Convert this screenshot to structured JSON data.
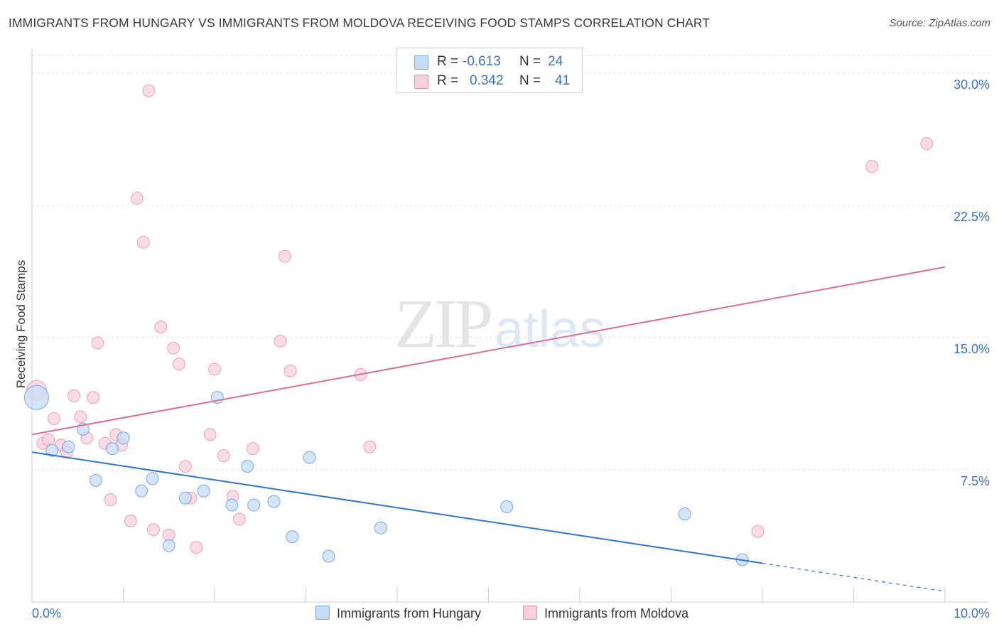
{
  "title": "IMMIGRANTS FROM HUNGARY VS IMMIGRANTS FROM MOLDOVA RECEIVING FOOD STAMPS CORRELATION CHART",
  "source": "Source: ZipAtlas.com",
  "watermark": {
    "zip": "ZIP",
    "atlas": "atlas"
  },
  "legend": {
    "rows": [
      {
        "r_label": "R =",
        "r_value": "-0.613",
        "n_label": "N =",
        "n_value": "24",
        "color": "#a8c8f0",
        "border": "#7aa8e0"
      },
      {
        "r_label": "R =",
        "r_value": "0.342",
        "n_label": "N =",
        "n_value": "41",
        "color": "#f8c0d0",
        "border": "#e890aa"
      }
    ]
  },
  "bottom_legend": {
    "hungary": "Immigrants from Hungary",
    "moldova": "Immigrants from Moldova"
  },
  "chart_data": {
    "type": "scatter",
    "ylabel": "Receiving Food Stamps",
    "xlim": [
      0,
      10
    ],
    "ylim": [
      0,
      31
    ],
    "x_tick_labels": [
      "0.0%",
      "10.0%"
    ],
    "y_ticks": [
      7.5,
      15.0,
      22.5,
      30.0
    ],
    "y_tick_labels": [
      "7.5%",
      "15.0%",
      "22.5%",
      "30.0%"
    ],
    "grid": true,
    "colors": {
      "hungary": "#5b95e0",
      "hungary_fill": "#c7dcf5",
      "moldova": "#e87ea0",
      "moldova_fill": "#fad0dd",
      "hungary_line": "#2f74d0",
      "moldova_line": "#e06c96"
    },
    "series": [
      {
        "name": "Immigrants from Hungary",
        "points": [
          {
            "x": 0.05,
            "y": 11.6,
            "size": "large"
          },
          {
            "x": 0.22,
            "y": 8.6
          },
          {
            "x": 0.4,
            "y": 8.8
          },
          {
            "x": 0.56,
            "y": 9.8
          },
          {
            "x": 0.7,
            "y": 6.9
          },
          {
            "x": 0.88,
            "y": 8.7
          },
          {
            "x": 1.0,
            "y": 9.3
          },
          {
            "x": 1.2,
            "y": 6.3
          },
          {
            "x": 1.32,
            "y": 7.0
          },
          {
            "x": 1.5,
            "y": 3.2
          },
          {
            "x": 1.68,
            "y": 5.9
          },
          {
            "x": 1.88,
            "y": 6.3
          },
          {
            "x": 2.03,
            "y": 11.6
          },
          {
            "x": 2.19,
            "y": 5.5
          },
          {
            "x": 2.36,
            "y": 7.7
          },
          {
            "x": 2.43,
            "y": 5.5
          },
          {
            "x": 2.65,
            "y": 5.7
          },
          {
            "x": 2.85,
            "y": 3.7
          },
          {
            "x": 3.04,
            "y": 8.2
          },
          {
            "x": 3.25,
            "y": 2.6
          },
          {
            "x": 3.82,
            "y": 4.2
          },
          {
            "x": 5.2,
            "y": 5.4
          },
          {
            "x": 7.15,
            "y": 5.0
          },
          {
            "x": 7.78,
            "y": 2.4
          }
        ],
        "trend": {
          "x0": 0,
          "y0": 8.5,
          "x1": 8.0,
          "y1": 2.2,
          "dash_to_x": 10.0,
          "dash_to_y": 0.6
        }
      },
      {
        "name": "Immigrants from Moldova",
        "points": [
          {
            "x": 0.05,
            "y": 12.0,
            "size": "large"
          },
          {
            "x": 0.12,
            "y": 9.0
          },
          {
            "x": 0.18,
            "y": 9.2
          },
          {
            "x": 0.24,
            "y": 10.4
          },
          {
            "x": 0.32,
            "y": 8.9
          },
          {
            "x": 0.38,
            "y": 8.5
          },
          {
            "x": 0.46,
            "y": 11.7
          },
          {
            "x": 0.53,
            "y": 10.5
          },
          {
            "x": 0.6,
            "y": 9.3
          },
          {
            "x": 0.67,
            "y": 11.6
          },
          {
            "x": 0.72,
            "y": 14.7
          },
          {
            "x": 0.8,
            "y": 9.0
          },
          {
            "x": 0.86,
            "y": 5.8
          },
          {
            "x": 0.92,
            "y": 9.5
          },
          {
            "x": 0.98,
            "y": 8.9
          },
          {
            "x": 1.08,
            "y": 4.6
          },
          {
            "x": 1.15,
            "y": 22.9
          },
          {
            "x": 1.22,
            "y": 20.4
          },
          {
            "x": 1.28,
            "y": 29.0
          },
          {
            "x": 1.33,
            "y": 4.1
          },
          {
            "x": 1.41,
            "y": 15.6
          },
          {
            "x": 1.5,
            "y": 3.8
          },
          {
            "x": 1.55,
            "y": 14.4
          },
          {
            "x": 1.61,
            "y": 13.5
          },
          {
            "x": 1.68,
            "y": 7.7
          },
          {
            "x": 1.74,
            "y": 5.9
          },
          {
            "x": 1.8,
            "y": 3.1
          },
          {
            "x": 1.95,
            "y": 9.5
          },
          {
            "x": 2.0,
            "y": 13.2
          },
          {
            "x": 2.1,
            "y": 8.3
          },
          {
            "x": 2.2,
            "y": 6.0
          },
          {
            "x": 2.27,
            "y": 4.7
          },
          {
            "x": 2.42,
            "y": 8.7
          },
          {
            "x": 2.72,
            "y": 14.8
          },
          {
            "x": 2.77,
            "y": 19.6
          },
          {
            "x": 2.83,
            "y": 13.1
          },
          {
            "x": 3.6,
            "y": 12.9
          },
          {
            "x": 3.7,
            "y": 8.8
          },
          {
            "x": 7.95,
            "y": 4.0
          },
          {
            "x": 9.2,
            "y": 24.7
          },
          {
            "x": 9.8,
            "y": 26.0
          }
        ],
        "trend": {
          "x0": 0,
          "y0": 9.5,
          "x1": 10.0,
          "y1": 19.0
        }
      }
    ]
  }
}
